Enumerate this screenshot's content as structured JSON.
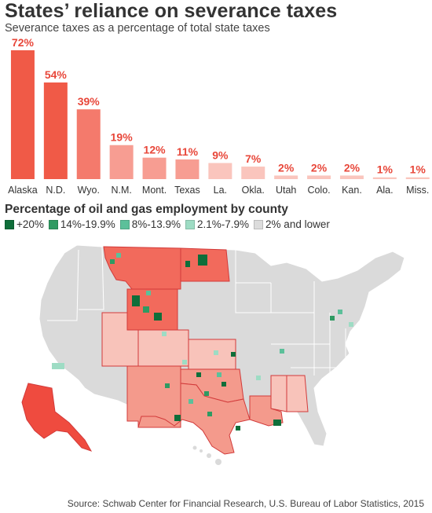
{
  "title": "States’ reliance on severance taxes",
  "subtitle": "Severance taxes as a percentage of total state taxes",
  "chart_data": {
    "type": "bar",
    "categories": [
      "Alaska",
      "N.D.",
      "Wyo.",
      "N.M.",
      "Mont.",
      "Texas",
      "La.",
      "Okla.",
      "Utah",
      "Colo.",
      "Kan.",
      "Ala.",
      "Miss."
    ],
    "values": [
      72,
      54,
      39,
      19,
      12,
      11,
      9,
      7,
      2,
      2,
      2,
      1,
      1
    ],
    "value_labels": [
      "72%",
      "54%",
      "39%",
      "19%",
      "12%",
      "11%",
      "9%",
      "7%",
      "2%",
      "2%",
      "2%",
      "1%",
      "1%"
    ],
    "unit": "%",
    "ylim": [
      0,
      72
    ],
    "grid": false,
    "colors": {
      "high": "#f05a47",
      "mid_high": "#f47a6c",
      "mid": "#f79d92",
      "low": "#fac5bd",
      "label": "#e8473a"
    }
  },
  "map": {
    "title": "Percentage of oil and gas employment by county",
    "legend": [
      {
        "label": "+20%",
        "color": "#0f6e3a"
      },
      {
        "label": "14%-19.9%",
        "color": "#2f9a62"
      },
      {
        "label": "8%-13.9%",
        "color": "#5cc09a"
      },
      {
        "label": "2.1%-7.9%",
        "color": "#9edcc4"
      },
      {
        "label": "2% and lower",
        "color": "#dcdcdc"
      }
    ],
    "colors": {
      "land": "#dadada",
      "border": "#ffffff",
      "alaska": "#ef4b3f",
      "state_high": "#f26a5c",
      "state_mid": "#f49a8c",
      "state_low": "#f8c3ba",
      "outline": "#d23a3a"
    }
  },
  "source": "Source: Schwab Center for Financial Research,  U.S. Bureau of Labor Statistics, 2015"
}
